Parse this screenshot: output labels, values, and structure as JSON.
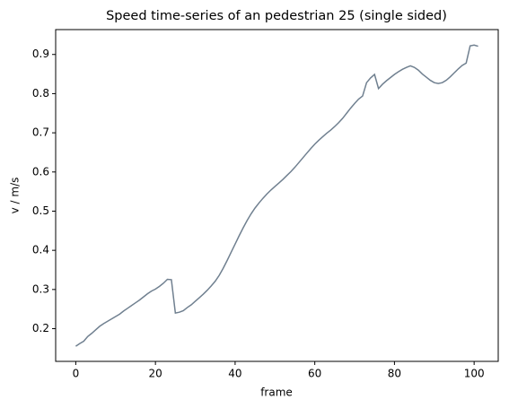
{
  "chart_data": {
    "type": "line",
    "title": "Speed time-series of an pedestrian 25 (single sided)",
    "xlabel": "frame",
    "ylabel": "v / m/s",
    "x": [
      0,
      1,
      2,
      3,
      4,
      5,
      6,
      7,
      8,
      9,
      10,
      11,
      12,
      13,
      14,
      15,
      16,
      17,
      18,
      19,
      20,
      21,
      22,
      23,
      24,
      25,
      26,
      27,
      28,
      29,
      30,
      31,
      32,
      33,
      34,
      35,
      36,
      37,
      38,
      39,
      40,
      41,
      42,
      43,
      44,
      45,
      46,
      47,
      48,
      49,
      50,
      51,
      52,
      53,
      54,
      55,
      56,
      57,
      58,
      59,
      60,
      61,
      62,
      63,
      64,
      65,
      66,
      67,
      68,
      69,
      70,
      71,
      72,
      73,
      74,
      75,
      76,
      77,
      78,
      79,
      80,
      81,
      82,
      83,
      84,
      85,
      86,
      87,
      88,
      89,
      90,
      91,
      92,
      93,
      94,
      95,
      96,
      97,
      98,
      99,
      100,
      101
    ],
    "series": [
      {
        "color": "#708090",
        "values": [
          0.155,
          0.162,
          0.168,
          0.18,
          0.188,
          0.197,
          0.206,
          0.213,
          0.219,
          0.225,
          0.231,
          0.237,
          0.245,
          0.252,
          0.259,
          0.266,
          0.273,
          0.281,
          0.289,
          0.296,
          0.301,
          0.308,
          0.316,
          0.326,
          0.325,
          0.24,
          0.242,
          0.246,
          0.254,
          0.261,
          0.27,
          0.279,
          0.288,
          0.298,
          0.309,
          0.321,
          0.336,
          0.354,
          0.374,
          0.395,
          0.416,
          0.437,
          0.457,
          0.476,
          0.493,
          0.508,
          0.521,
          0.533,
          0.544,
          0.554,
          0.563,
          0.572,
          0.581,
          0.591,
          0.601,
          0.612,
          0.624,
          0.636,
          0.648,
          0.66,
          0.671,
          0.681,
          0.69,
          0.699,
          0.707,
          0.716,
          0.726,
          0.737,
          0.75,
          0.763,
          0.775,
          0.786,
          0.794,
          0.828,
          0.84,
          0.849,
          0.813,
          0.824,
          0.833,
          0.841,
          0.849,
          0.856,
          0.862,
          0.867,
          0.871,
          0.867,
          0.86,
          0.85,
          0.842,
          0.834,
          0.828,
          0.826,
          0.828,
          0.834,
          0.843,
          0.853,
          0.863,
          0.872,
          0.878,
          0.922,
          0.924,
          0.921
        ]
      }
    ],
    "xlim": [
      -5.05,
      106.05
    ],
    "xticks": [
      0,
      20,
      40,
      60,
      80,
      100
    ],
    "ylim": [
      0.1165,
      0.9635
    ],
    "yticks": [
      0.2,
      0.3,
      0.4,
      0.5,
      0.6,
      0.7,
      0.8,
      0.9
    ]
  }
}
